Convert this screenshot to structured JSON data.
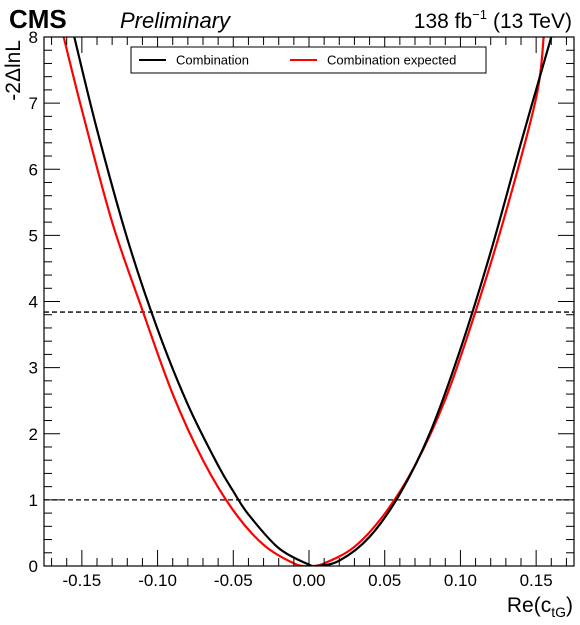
{
  "header": {
    "experiment": "CMS",
    "status": "Preliminary",
    "lumi_value": "138 fb",
    "lumi_exponent": "−1",
    "energy": "(13 TeV)"
  },
  "chart_data": {
    "type": "line",
    "xlabel": "Re(c",
    "xlabel_sub": "tG",
    "xlabel_close": ")",
    "ylabel": "-2ΔlnL",
    "xlim": [
      -0.175,
      0.175
    ],
    "ylim": [
      0,
      8
    ],
    "xticks": [
      -0.15,
      -0.1,
      -0.05,
      0.0,
      0.05,
      0.1,
      0.15
    ],
    "xtick_labels": [
      "-0.15",
      "-0.10",
      "-0.05",
      "0.00",
      "0.05",
      "0.10",
      "0.15"
    ],
    "yticks": [
      0,
      1,
      2,
      3,
      4,
      5,
      6,
      7,
      8
    ],
    "ytick_labels": [
      "0",
      "1",
      "2",
      "3",
      "4",
      "5",
      "6",
      "7",
      "8"
    ],
    "reference_lines": [
      1.0,
      3.84
    ],
    "grid": false,
    "legend_position": "top-center",
    "series": [
      {
        "name": "Combination",
        "color": "#000000",
        "x": [
          -0.155,
          -0.14,
          -0.12,
          -0.1,
          -0.08,
          -0.06,
          -0.05,
          -0.04,
          -0.02,
          0.0,
          0.005,
          0.02,
          0.04,
          0.06,
          0.08,
          0.1,
          0.12,
          0.14,
          0.16
        ],
        "y": [
          8.0,
          6.6,
          4.95,
          3.58,
          2.44,
          1.52,
          1.13,
          0.78,
          0.27,
          0.02,
          0.0,
          0.08,
          0.44,
          1.09,
          2.02,
          3.28,
          4.75,
          6.4,
          8.0
        ]
      },
      {
        "name": "Combination expected",
        "color": "#ff0000",
        "x": [
          -0.162,
          -0.15,
          -0.13,
          -0.11,
          -0.09,
          -0.07,
          -0.05,
          -0.03,
          -0.01,
          0.0,
          0.01,
          0.03,
          0.05,
          0.07,
          0.09,
          0.11,
          0.13,
          0.15,
          0.155
        ],
        "y": [
          8.0,
          6.9,
          5.2,
          3.87,
          2.6,
          1.6,
          0.84,
          0.32,
          0.04,
          0.0,
          0.04,
          0.29,
          0.79,
          1.52,
          2.52,
          3.85,
          5.35,
          7.08,
          8.0
        ]
      }
    ]
  }
}
